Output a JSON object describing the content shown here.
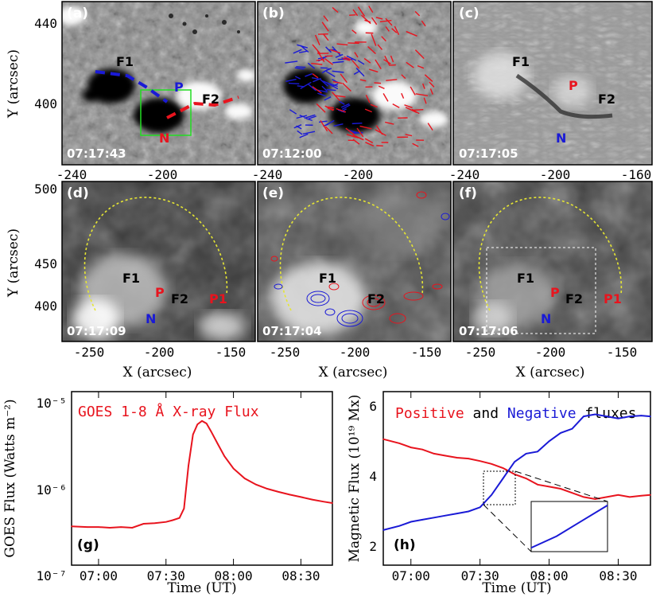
{
  "colors": {
    "red": "#e8141e",
    "blue": "#1a1ad6",
    "black": "#000000",
    "yellow": "#e6e633",
    "green": "#22dd22",
    "white": "#ffffff"
  },
  "panels_top": [
    {
      "label": "(a)",
      "time": "07:17:43"
    },
    {
      "label": "(b)",
      "time": "07:12:00"
    },
    {
      "label": "(c)",
      "time": "07:17:05"
    }
  ],
  "panels_mid": [
    {
      "label": "(d)",
      "time": "07:17:09"
    },
    {
      "label": "(e)",
      "time": "07:17:04"
    },
    {
      "label": "(f)",
      "time": "07:17:06"
    }
  ],
  "features": {
    "F1": "F1",
    "F2": "F2",
    "P": "P",
    "N": "N",
    "P1": "P1"
  },
  "top_axes": {
    "ylabel": "Y (arcsec)",
    "yticks": [
      "440",
      "400"
    ],
    "xticks": [
      "-240",
      "-200",
      "-240",
      "-200",
      "-240",
      "-200",
      "-160"
    ]
  },
  "mid_axes": {
    "ylabel": "Y (arcsec)",
    "xlabel": "X (arcsec)",
    "yticks": [
      "500",
      "450",
      "400"
    ],
    "xticks": [
      "-250",
      "-200",
      "-150"
    ]
  },
  "chart_data": [
    {
      "type": "line",
      "panel": "(g)",
      "title": "GOES 1-8 Å  X-ray Flux",
      "xlabel": "Time (UT)",
      "ylabel": "GOES Flux (Watts m⁻²)",
      "xticks": [
        "07:00",
        "07:30",
        "08:00",
        "08:30"
      ],
      "yticks": [
        "10⁻⁵",
        "10⁻⁶",
        "10⁻⁷"
      ],
      "xlim": [
        "06:48",
        "08:44"
      ],
      "ylim": [
        1e-07,
        1e-05
      ],
      "log_y": true,
      "series": [
        {
          "name": "GOES 1-8 Å  X-ray Flux",
          "color": "#e8141e",
          "x": [
            "06:48",
            "06:55",
            "07:00",
            "07:05",
            "07:10",
            "07:15",
            "07:20",
            "07:25",
            "07:30",
            "07:33",
            "07:36",
            "07:38",
            "07:40",
            "07:42",
            "07:44",
            "07:46",
            "07:48",
            "07:50",
            "07:53",
            "07:56",
            "08:00",
            "08:05",
            "08:10",
            "08:15",
            "08:20",
            "08:25",
            "08:30",
            "08:35",
            "08:40",
            "08:44"
          ],
          "values": [
            2.8e-07,
            2.75e-07,
            2.75e-07,
            2.7e-07,
            2.75e-07,
            2.7e-07,
            3e-07,
            3.05e-07,
            3.15e-07,
            3.3e-07,
            3.5e-07,
            4.5e-07,
            1.4e-06,
            3.2e-06,
            4.2e-06,
            4.6e-06,
            4.3e-06,
            3.5e-06,
            2.5e-06,
            1.8e-06,
            1.3e-06,
            1e-06,
            8.5e-07,
            7.6e-07,
            7e-07,
            6.5e-07,
            6.1e-07,
            5.7e-07,
            5.4e-07,
            5.2e-07
          ]
        }
      ]
    },
    {
      "type": "line",
      "panel": "(h)",
      "title_parts": [
        "Positive",
        " and ",
        "Negative",
        " fluxes"
      ],
      "xlabel": "Time (UT)",
      "ylabel": "Magnetic Flux (10¹⁹ Mx)",
      "xticks": [
        "07:00",
        "07:30",
        "08:00",
        "08:30"
      ],
      "yticks": [
        "6",
        "4",
        "2"
      ],
      "xlim": [
        "06:48",
        "08:44"
      ],
      "ylim": [
        1.8,
        6.0
      ],
      "series": [
        {
          "name": "Positive",
          "color": "#e8141e",
          "x": [
            "06:48",
            "06:55",
            "07:00",
            "07:05",
            "07:10",
            "07:15",
            "07:20",
            "07:25",
            "07:30",
            "07:35",
            "07:40",
            "07:45",
            "07:50",
            "07:55",
            "08:00",
            "08:05",
            "08:10",
            "08:15",
            "08:20",
            "08:25",
            "08:30",
            "08:35",
            "08:40",
            "08:44"
          ],
          "values": [
            4.85,
            4.75,
            4.65,
            4.6,
            4.5,
            4.45,
            4.4,
            4.38,
            4.32,
            4.25,
            4.15,
            4.0,
            3.9,
            3.75,
            3.7,
            3.65,
            3.55,
            3.45,
            3.4,
            3.45,
            3.5,
            3.45,
            3.48,
            3.5
          ]
        },
        {
          "name": "Negative",
          "color": "#1a1ad6",
          "x": [
            "06:48",
            "06:55",
            "07:00",
            "07:05",
            "07:10",
            "07:15",
            "07:20",
            "07:25",
            "07:30",
            "07:35",
            "07:40",
            "07:45",
            "07:50",
            "07:55",
            "08:00",
            "08:05",
            "08:10",
            "08:15",
            "08:20",
            "08:25",
            "08:30",
            "08:35",
            "08:40",
            "08:44"
          ],
          "values": [
            2.65,
            2.75,
            2.85,
            2.9,
            2.95,
            3.0,
            3.05,
            3.1,
            3.2,
            3.5,
            3.9,
            4.3,
            4.5,
            4.55,
            4.8,
            5.0,
            5.1,
            5.4,
            5.45,
            5.4,
            5.35,
            5.4,
            5.42,
            5.4
          ]
        }
      ]
    }
  ]
}
